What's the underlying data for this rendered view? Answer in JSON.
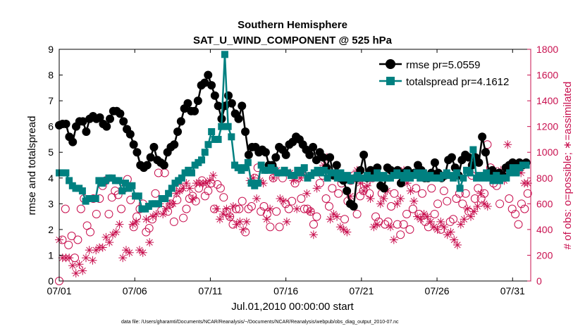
{
  "chart_data": {
    "type": "line",
    "title": "Southern Hemisphere",
    "subtitle": "SAT_U_WIND_COMPONENT @ 525 hPa",
    "xlabel": "Jul.01,2010 00:00:00 start",
    "ylabel": "rmse and totalspread",
    "y2label": "# of obs: o=possible; ∗=assimilated",
    "xlim": [
      1,
      32.2
    ],
    "ylim": [
      0,
      9
    ],
    "y2lim": [
      0,
      1800
    ],
    "x_ticks": [
      1,
      6,
      11,
      16,
      21,
      26,
      31
    ],
    "x_tick_labels": [
      "07/01",
      "07/06",
      "07/11",
      "07/16",
      "07/21",
      "07/26",
      "07/31"
    ],
    "y_ticks": [
      0,
      1,
      2,
      3,
      4,
      5,
      6,
      7,
      8,
      9
    ],
    "y2_ticks": [
      0,
      200,
      400,
      600,
      800,
      1000,
      1200,
      1400,
      1600,
      1800
    ],
    "legend_position": "top-right",
    "colors": {
      "rmse": "#000000",
      "totalspread": "#008080",
      "obs": "#c8104f"
    },
    "series": [
      {
        "name": "rmse pr=5.0559",
        "marker": "circle",
        "values": [
          6.05,
          6.1,
          6.1,
          5.6,
          5.4,
          6.0,
          6.2,
          6.2,
          5.8,
          6.3,
          6.4,
          6.3,
          6.35,
          6.1,
          6.0,
          6.3,
          6.6,
          6.6,
          6.5,
          6.2,
          5.9,
          5.7,
          5.3,
          5.0,
          4.5,
          4.4,
          4.5,
          4.8,
          5.2,
          4.7,
          4.6,
          4.5,
          5.0,
          5.2,
          5.3,
          5.8,
          6.2,
          6.7,
          6.9,
          6.6,
          6.6,
          7.0,
          7.6,
          7.7,
          8.0,
          7.6,
          7.2,
          6.8,
          6.3,
          6.8,
          7.2,
          6.9,
          6.5,
          6.3,
          6.8,
          5.8,
          4.9,
          5.2,
          5.2,
          5.0,
          5.1,
          5.0,
          4.5,
          4.5,
          4.8,
          5.2,
          5.1,
          4.9,
          5.3,
          5.4,
          5.6,
          5.5,
          5.3,
          5.1,
          4.9,
          5.2,
          4.7,
          5.0,
          4.8,
          4.4,
          4.8,
          4.1,
          4.5,
          4.0,
          3.9,
          3.5,
          3.0,
          2.9,
          4.0,
          4.3,
          4.9,
          4.0,
          4.3,
          4.2,
          4.4,
          3.7,
          3.6,
          4.4,
          4.3,
          4.2,
          4.3,
          3.8,
          4.2,
          4.3,
          4.1,
          4.2,
          4.5,
          4.3,
          4.0,
          4.0,
          4.2,
          4.6,
          4.2,
          4.0,
          4.1,
          4.7,
          4.8,
          4.4,
          4.1,
          4.7,
          4.9,
          4.8,
          4.5,
          4.8,
          4.6,
          5.6,
          5.0,
          4.2,
          4.3,
          4.0,
          4.2,
          4.1,
          4.4,
          4.5,
          4.6,
          4.4,
          4.6,
          4.5,
          4.6
        ]
      },
      {
        "name": "totalspread pr=4.1612",
        "marker": "square",
        "values": [
          4.2,
          4.2,
          4.2,
          3.9,
          3.7,
          3.6,
          3.6,
          3.5,
          3.1,
          3.2,
          3.2,
          3.2,
          3.9,
          3.8,
          3.9,
          4.0,
          4.0,
          3.9,
          3.9,
          3.5,
          3.8,
          3.6,
          3.7,
          3.3,
          3.3,
          2.8,
          2.8,
          2.9,
          3.0,
          3.0,
          3.0,
          3.2,
          3.2,
          3.4,
          3.6,
          3.8,
          3.9,
          4.0,
          4.2,
          4.3,
          4.2,
          4.5,
          4.6,
          4.7,
          5.0,
          5.3,
          5.8,
          5.5,
          5.5,
          6.0,
          8.8,
          6.0,
          5.6,
          4.5,
          4.4,
          4.3,
          4.4,
          4.6,
          3.8,
          3.7,
          3.8,
          4.5,
          4.3,
          4.3,
          4.4,
          4.3,
          4.2,
          4.2,
          4.3,
          4.2,
          4.1,
          4.1,
          4.3,
          4.2,
          4.4,
          4.0,
          4.1,
          4.2,
          4.3,
          4.2,
          4.3,
          4.0,
          4.2,
          4.2,
          4.0,
          4.2,
          4.0,
          4.1,
          3.9,
          4.0,
          4.1,
          4.0,
          4.0,
          4.1,
          4.0,
          4.0,
          4.2,
          4.0,
          4.1,
          4.0,
          4.0,
          4.1,
          4.2,
          4.1,
          4.0,
          4.2,
          4.0,
          4.1,
          4.2,
          4.0,
          4.2,
          4.0,
          4.1,
          4.0,
          4.0,
          4.0,
          4.1,
          4.2,
          4.1,
          4.0,
          4.2,
          3.6,
          4.0,
          4.3,
          4.2,
          5.1,
          4.0,
          4.1,
          4.0,
          4.2,
          4.0,
          3.9,
          4.1,
          3.9,
          4.0,
          4.0,
          4.2,
          4.4,
          4.2,
          4.4,
          4.5,
          4.5
        ]
      },
      {
        "name": "possible",
        "marker": "open-circle",
        "axis": "right",
        "values": [
          0,
          320,
          560,
          280,
          350,
          180,
          320,
          560,
          640,
          430,
          380,
          640,
          520,
          640,
          740,
          780,
          520,
          650,
          700,
          670,
          560,
          720,
          790,
          630,
          420,
          500,
          560,
          600,
          380,
          410,
          480,
          680,
          840,
          550,
          840,
          540,
          600,
          460,
          630,
          720,
          490,
          560,
          640,
          660,
          620,
          720,
          780,
          660,
          700,
          760,
          560,
          750,
          720,
          650,
          540,
          500,
          440,
          560,
          560,
          620,
          380,
          560,
          580,
          800,
          880,
          540,
          580,
          520,
          420,
          800,
          540,
          420,
          800,
          600,
          560,
          620,
          760,
          800,
          640,
          560,
          560,
          540,
          440,
          500,
          760,
          820,
          640,
          580,
          720,
          820,
          680,
          760,
          480,
          620,
          780,
          820,
          520,
          660,
          700,
          760,
          680,
          800,
          500,
          460,
          680,
          440,
          460,
          580,
          680,
          440,
          360,
          440,
          520,
          400,
          560,
          720,
          520,
          680,
          460,
          420,
          720,
          520,
          600,
          400,
          700,
          620,
          460,
          480,
          640,
          680,
          600,
          680,
          540,
          820,
          640,
          720,
          640,
          680,
          1060,
          880,
          760,
          740,
          600,
          820,
          860,
          640,
          560,
          520,
          440,
          600,
          560,
          680
        ]
      },
      {
        "name": "assimilated",
        "marker": "star",
        "axis": "right",
        "values": [
          320,
          180,
          180,
          180,
          120,
          60,
          130,
          80,
          180,
          240,
          160,
          240,
          260,
          260,
          340,
          300,
          360,
          380,
          440,
          180,
          240,
          220,
          440,
          460,
          240,
          220,
          480,
          300,
          500,
          520,
          600,
          520,
          560,
          600,
          600,
          680,
          700,
          720,
          760,
          720,
          640,
          760,
          760,
          760,
          760,
          780,
          820,
          560,
          480,
          520,
          560,
          500,
          580,
          440,
          460,
          400,
          460,
          780,
          800,
          640,
          780,
          760,
          480,
          560,
          800,
          860,
          640,
          620,
          460,
          840,
          780,
          560,
          800,
          840,
          680,
          540,
          360,
          720,
          860,
          900,
          960,
          480,
          520,
          500,
          420,
          400,
          380,
          660,
          800,
          860,
          760,
          700,
          740,
          640,
          420,
          440,
          600,
          640,
          700,
          420,
          320,
          600,
          640,
          860,
          760,
          700,
          620,
          500,
          480,
          520,
          500,
          460,
          420,
          400,
          460,
          420,
          360,
          380,
          320,
          280,
          440,
          480,
          560,
          500,
          540,
          580,
          680,
          600,
          580,
          840,
          860,
          800,
          860,
          780,
          1060,
          880,
          880,
          880,
          840,
          760,
          760
        ]
      }
    ]
  },
  "footer": {
    "data_file": "data file: /Users/gharamti/Documents/NCAR/Reanalysis/~/Documents/NCAR/Reanalysis/webpub/obs_diag_output_2010-07.nc"
  }
}
